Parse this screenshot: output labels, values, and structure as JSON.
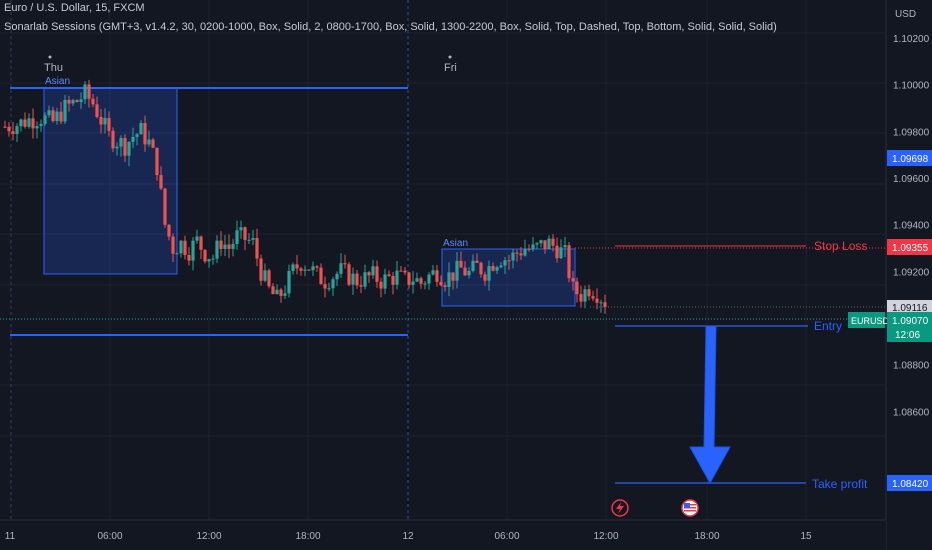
{
  "header": {
    "title": "Euro / U.S. Dollar, 15, FXCM",
    "indicator": "Sonarlab Sessions (GMT+3, v1.4.2, 30, 0200-1000, Box, Solid, 2, 0800-1700, Box, Solid, 1300-2200, Box, Solid, Top, Dashed, Top, Bottom, Solid, Solid, Solid)"
  },
  "price_axis": {
    "currency": "USD",
    "ticks": [
      "1.10200",
      "1.10000",
      "1.09800",
      "1.09600",
      "1.09400",
      "1.09200",
      "1.08800",
      "1.08600"
    ],
    "tick_values": [
      1.102,
      1.1,
      1.098,
      1.096,
      1.094,
      1.092,
      1.088,
      1.086
    ],
    "labels": {
      "level_1": "1.09698",
      "stop_loss": "1.09355",
      "level_2": "1.09116",
      "current": "1.09070",
      "countdown": "12:06",
      "take_profit": "1.08420"
    }
  },
  "time_axis": {
    "ticks": [
      "11",
      "06:00",
      "12:00",
      "18:00",
      "12",
      "06:00",
      "12:00",
      "18:00",
      "15"
    ]
  },
  "day_labels": {
    "thu": "Thu",
    "fri": "Fri"
  },
  "sessions": {
    "asian_1": "Asian",
    "asian_2": "Asian"
  },
  "annotations": {
    "stop_loss": "Stop Loss",
    "entry": "Entry",
    "take_profit": "Take profit",
    "symbol": "EURUSD"
  },
  "colors": {
    "background": "#131722",
    "up": "#26a69a",
    "down": "#ef5350",
    "session_box": "#2962ff",
    "stop_loss": "#f23645",
    "entry": "#2962ff",
    "price_label_blue": "#2962ff",
    "price_label_green": "#089981"
  },
  "chart_data": {
    "type": "candlestick",
    "symbol": "EURUSD",
    "timeframe": "15",
    "ylim": [
      1.0822,
      1.1032
    ],
    "x": [
      "11",
      "06:00",
      "12:00",
      "18:00",
      "12",
      "06:00",
      "12:00",
      "18:00",
      "15"
    ],
    "close_path": [
      [
        0,
        1.0982
      ],
      [
        3,
        1.0983
      ],
      [
        6,
        1.0985
      ],
      [
        9,
        1.0986
      ],
      [
        12,
        1.0984
      ],
      [
        15,
        1.099
      ],
      [
        18,
        1.0993
      ],
      [
        20,
        1.0996
      ],
      [
        22,
        1.0992
      ],
      [
        24,
        1.0985
      ],
      [
        26,
        1.0978
      ],
      [
        28,
        1.0976
      ],
      [
        30,
        1.0974
      ],
      [
        32,
        1.0978
      ],
      [
        34,
        1.098
      ],
      [
        36,
        1.0975
      ],
      [
        38,
        1.0965
      ],
      [
        40,
        1.094
      ],
      [
        42,
        1.093
      ],
      [
        44,
        1.0932
      ],
      [
        46,
        1.0929
      ],
      [
        48,
        1.0933
      ],
      [
        50,
        1.0928
      ],
      [
        52,
        1.0926
      ],
      [
        54,
        1.0933
      ],
      [
        56,
        1.093
      ],
      [
        58,
        1.0935
      ],
      [
        60,
        1.0934
      ],
      [
        62,
        1.0932
      ],
      [
        64,
        1.092
      ],
      [
        66,
        1.0912
      ],
      [
        68,
        1.0908
      ],
      [
        70,
        1.0913
      ],
      [
        72,
        1.092
      ],
      [
        74,
        1.0924
      ],
      [
        76,
        1.0922
      ],
      [
        78,
        1.0918
      ],
      [
        80,
        1.0916
      ],
      [
        82,
        1.0918
      ],
      [
        84,
        1.092
      ],
      [
        86,
        1.0918
      ],
      [
        88,
        1.0916
      ],
      [
        90,
        1.0917
      ],
      [
        92,
        1.0918
      ],
      [
        94,
        1.0916
      ],
      [
        96,
        1.0917
      ],
      [
        98,
        1.0918
      ],
      [
        100,
        1.0916
      ],
      [
        102,
        1.0917
      ],
      [
        104,
        1.0915
      ],
      [
        106,
        1.0918
      ],
      [
        108,
        1.092
      ],
      [
        110,
        1.0917
      ],
      [
        112,
        1.0919
      ],
      [
        114,
        1.0921
      ],
      [
        116,
        1.0919
      ],
      [
        118,
        1.0922
      ],
      [
        120,
        1.092
      ],
      [
        122,
        1.0924
      ],
      [
        124,
        1.0926
      ],
      [
        126,
        1.0925
      ],
      [
        128,
        1.0928
      ],
      [
        130,
        1.093
      ],
      [
        132,
        1.0929
      ],
      [
        134,
        1.0931
      ],
      [
        136,
        1.0932
      ],
      [
        138,
        1.093
      ],
      [
        140,
        1.0927
      ],
      [
        142,
        1.0912
      ],
      [
        144,
        1.091
      ],
      [
        146,
        1.0913
      ],
      [
        148,
        1.0911
      ],
      [
        150,
        1.0907
      ]
    ],
    "levels": {
      "stop_loss": 1.09355,
      "entry": 1.0907,
      "take_profit": 1.0842,
      "level_1": 1.09698,
      "level_2": 1.09116,
      "session_high": 1.0998,
      "session_low": 1.09
    }
  }
}
